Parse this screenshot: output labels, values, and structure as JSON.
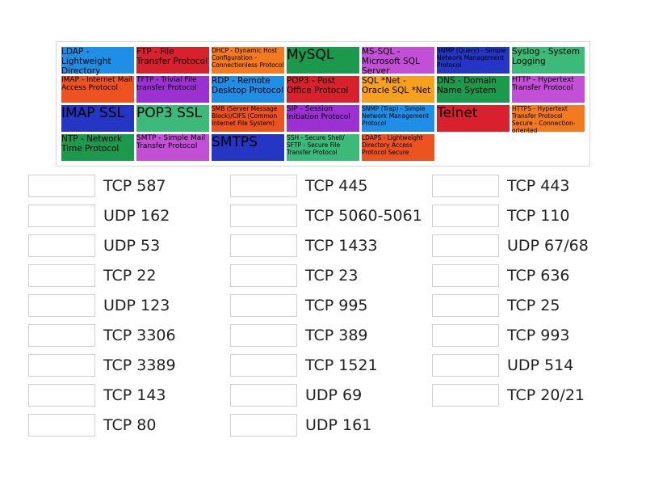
{
  "tiles": [
    {
      "label": "LDAP - Lightweight Directory",
      "color": "#1e8ee6"
    },
    {
      "label": "FTP - File Transfer Protocol",
      "color": "#d9212e"
    },
    {
      "label": "DHCP - Dynamic Host Configuration - Connectionless Protocol",
      "color": "#f37a1f"
    },
    {
      "label": "MySQL",
      "color": "#1b9a4e"
    },
    {
      "label": "MS-SQL - Microsoft SQL Server",
      "color": "#c24fd6"
    },
    {
      "label": "SNMP (Query) - Simple Network Management Protocol",
      "color": "#2535c4"
    },
    {
      "label": "Syslog - System Logging",
      "color": "#3cba7a"
    },
    {
      "label": "IMAP - Internet Mail Access Protocol",
      "color": "#ec5320"
    },
    {
      "label": "TFTP - Trivial File transfer Protocol",
      "color": "#9b31d2"
    },
    {
      "label": "RDP - Remote Desktop Protocol",
      "color": "#1e8ee6"
    },
    {
      "label": "POP3 - Post Office Protocol",
      "color": "#d9212e"
    },
    {
      "label": "SQL *Net - Oracle SQL *Net",
      "color": "#f7a01d"
    },
    {
      "label": "DNS - Domain Name System",
      "color": "#1b9a4e"
    },
    {
      "label": "HTTP - Hypertext Transfer Protocol",
      "color": "#c24fd6"
    },
    {
      "label": "IMAP SSL",
      "color": "#2535c4"
    },
    {
      "label": "POP3 SSL",
      "color": "#3cba7a"
    },
    {
      "label": "SMB (Server Message Block)/CIFS (Common Internet File System)",
      "color": "#ec5320"
    },
    {
      "label": "SIP - Session Initiation Protocol",
      "color": "#9b31d2"
    },
    {
      "label": "SNMP (Trap) - Simple Network Management Protocol",
      "color": "#1e8ee6"
    },
    {
      "label": "Telnet",
      "color": "#d9212e"
    },
    {
      "label": "HTTPS - Hypertext Transfer Protocol Secure - Connection-oriented",
      "color": "#f37a1f"
    },
    {
      "label": "NTP - Network Time Protocol",
      "color": "#1b9a4e"
    },
    {
      "label": "SMTP - Simple Mail Transfer Protocol",
      "color": "#c24fd6"
    },
    {
      "label": "SMTPS",
      "color": "#2535c4"
    },
    {
      "label": "SSH - Secure Shell/ SFTP - Secure File Transfer Protocol",
      "color": "#3cba7a"
    },
    {
      "label": "LDAPS - Lightweight Directory Access Protocol Secure",
      "color": "#ec5320"
    }
  ],
  "columns": [
    [
      "TCP 587",
      "UDP 162",
      "UDP 53",
      "TCP 22",
      "UDP 123",
      "TCP 3306",
      "TCP 3389",
      "TCP 143",
      "TCP 80"
    ],
    [
      "TCP 445",
      "TCP 5060-5061",
      "TCP 1433",
      "TCP 23",
      "TCP 995",
      "TCP 389",
      "TCP 1521",
      "UDP 69",
      "UDP 161"
    ],
    [
      "TCP 443",
      "TCP 110",
      "UDP 67/68",
      "TCP 636",
      "TCP 25",
      "TCP 993",
      "UDP 514",
      "TCP 20/21"
    ]
  ]
}
